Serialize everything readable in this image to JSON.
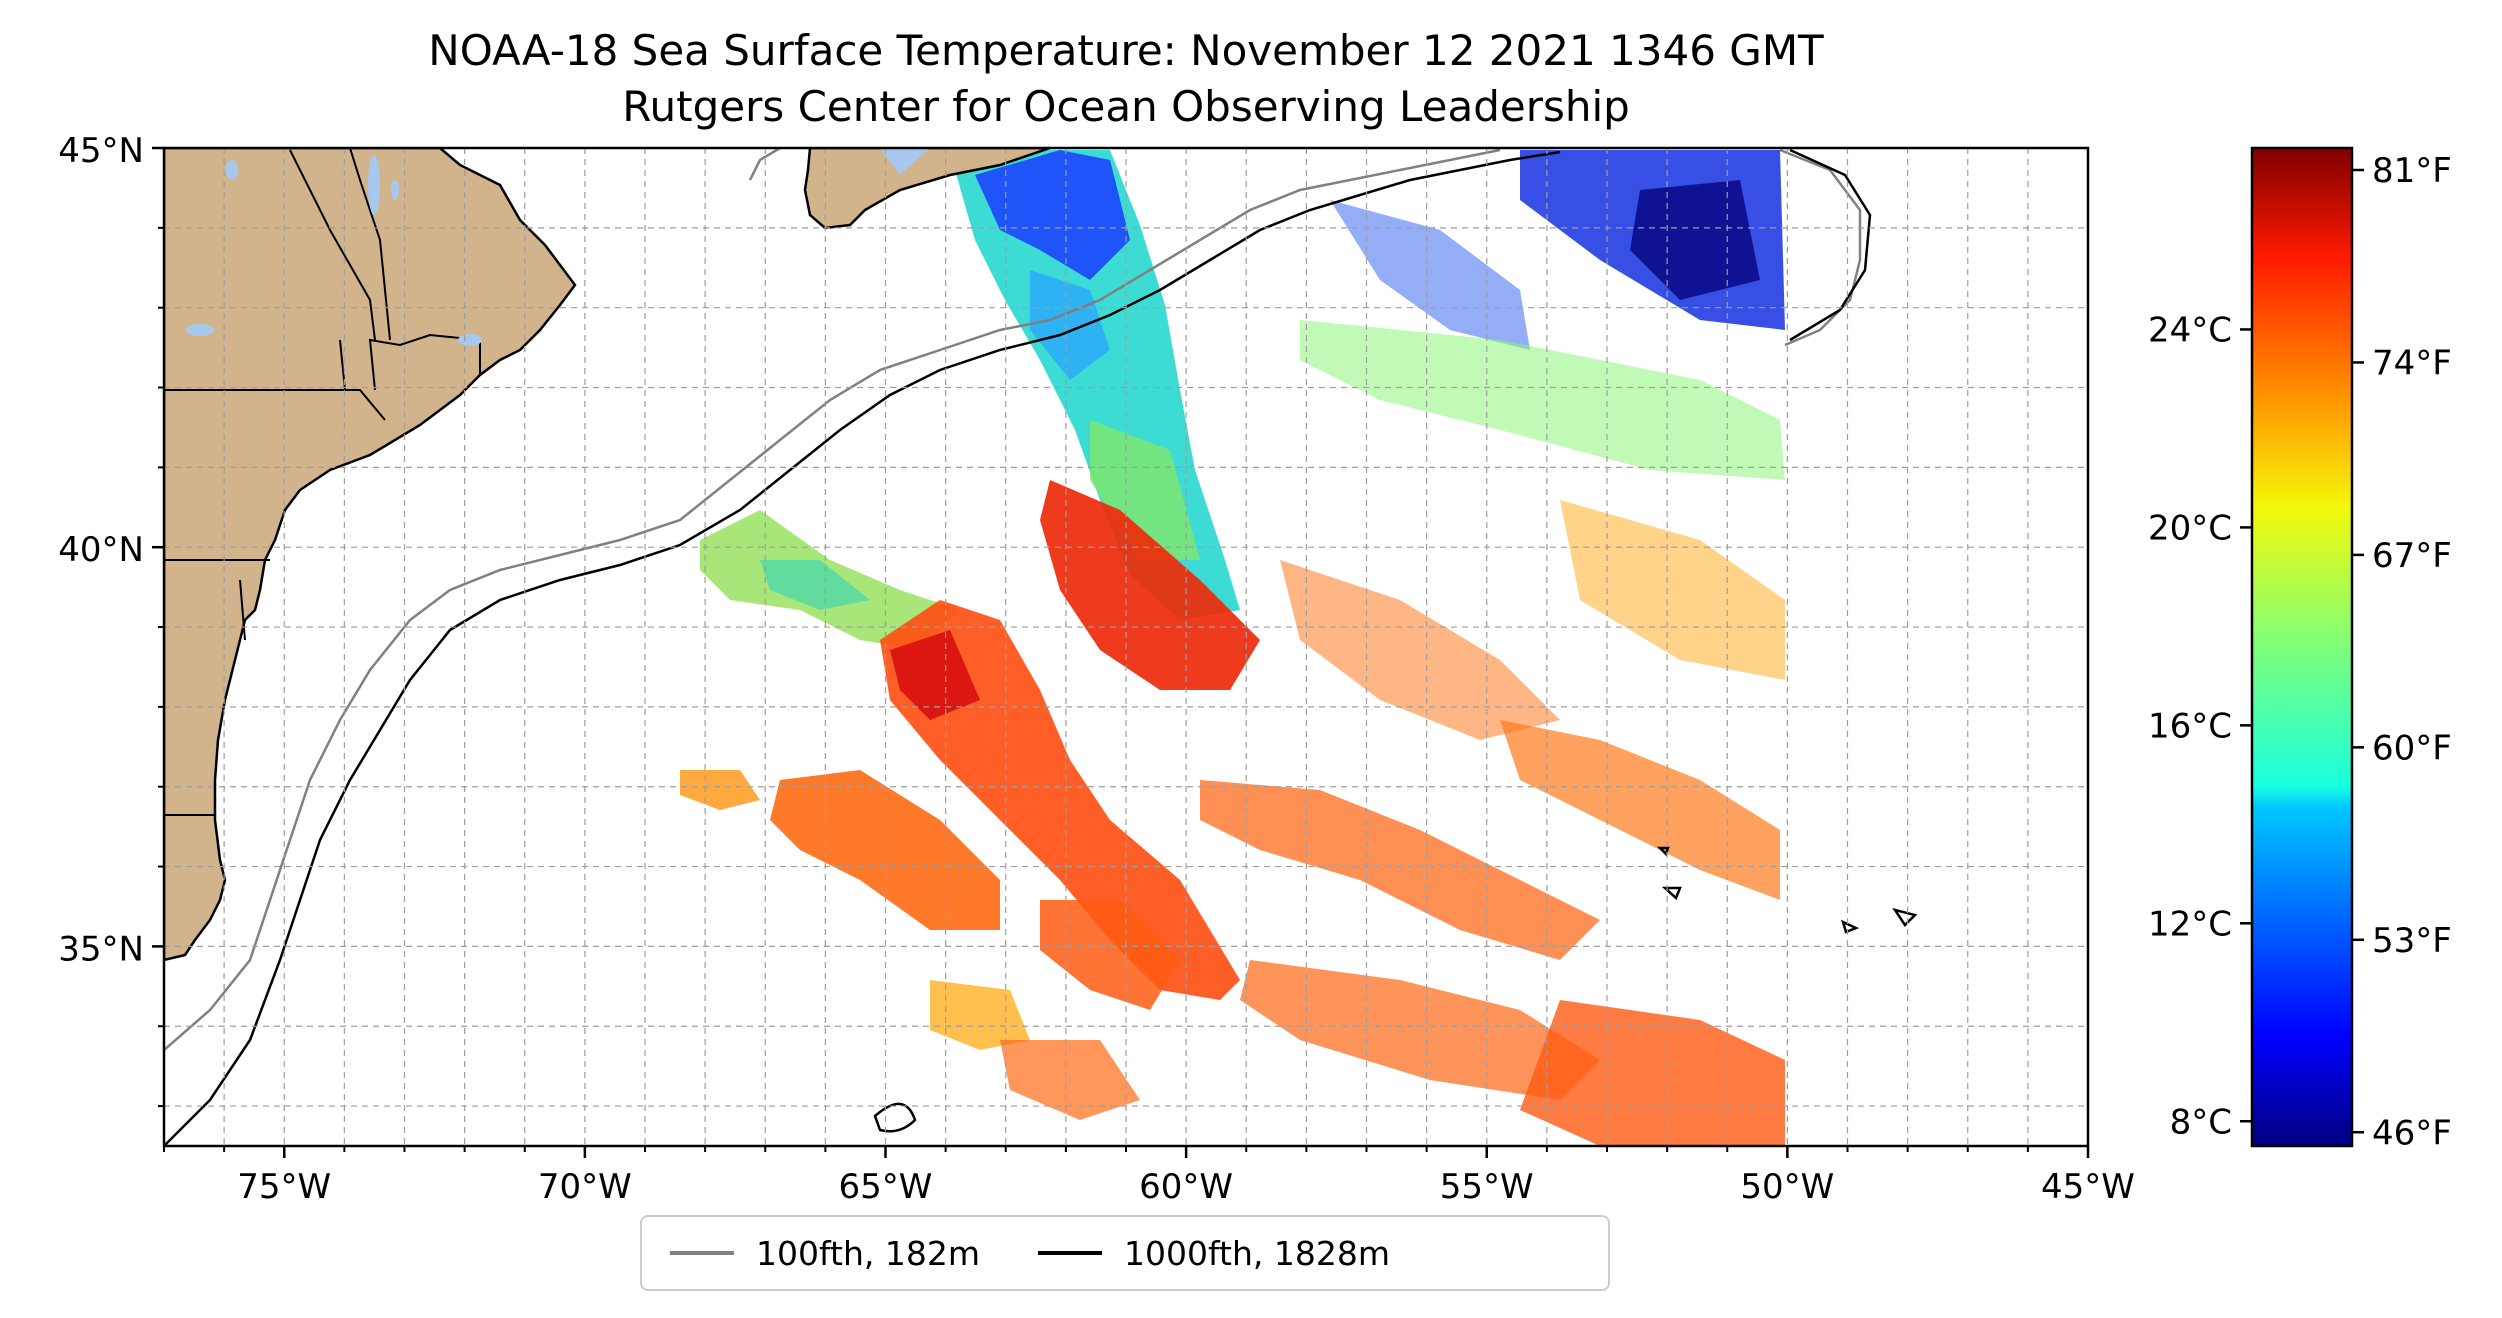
{
  "title": "NOAA-18 Sea Surface Temperature: November 12 2021 1346 GMT",
  "subtitle": "Rutgers Center for Ocean Observing Leadership",
  "map": {
    "lon_range": [
      -77,
      -45
    ],
    "lat_range": [
      32.5,
      45
    ],
    "land_color": "#d2b48c",
    "water_color": "#a6c8ee",
    "lat_ticks": [
      {
        "value": 45,
        "label": "45°N"
      },
      {
        "value": 40,
        "label": "40°N"
      },
      {
        "value": 35,
        "label": "35°N"
      }
    ],
    "lon_ticks": [
      {
        "value": -75,
        "label": "75°W"
      },
      {
        "value": -70,
        "label": "70°W"
      },
      {
        "value": -65,
        "label": "65°W"
      },
      {
        "value": -60,
        "label": "60°W"
      },
      {
        "value": -55,
        "label": "55°W"
      },
      {
        "value": -50,
        "label": "50°W"
      },
      {
        "value": -45,
        "label": "45°W"
      }
    ],
    "grid": "dashed, every 1°"
  },
  "colorbar": {
    "colormap": "jet",
    "range_f": [
      45.5,
      81.8
    ],
    "celsius_ticks": [
      {
        "value": 8,
        "label": "8°C"
      },
      {
        "value": 12,
        "label": "12°C"
      },
      {
        "value": 16,
        "label": "16°C"
      },
      {
        "value": 20,
        "label": "20°C"
      },
      {
        "value": 24,
        "label": "24°C"
      }
    ],
    "fahrenheit_ticks": [
      {
        "value": 46,
        "label": "46°F"
      },
      {
        "value": 53,
        "label": "53°F"
      },
      {
        "value": 60,
        "label": "60°F"
      },
      {
        "value": 67,
        "label": "67°F"
      },
      {
        "value": 74,
        "label": "74°F"
      },
      {
        "value": 81,
        "label": "81°F"
      }
    ]
  },
  "legend": {
    "items": [
      {
        "label": "100fth, 182m",
        "color": "#808080"
      },
      {
        "label": "1000fth, 1828m",
        "color": "#000000"
      }
    ],
    "placement": "below the map"
  }
}
